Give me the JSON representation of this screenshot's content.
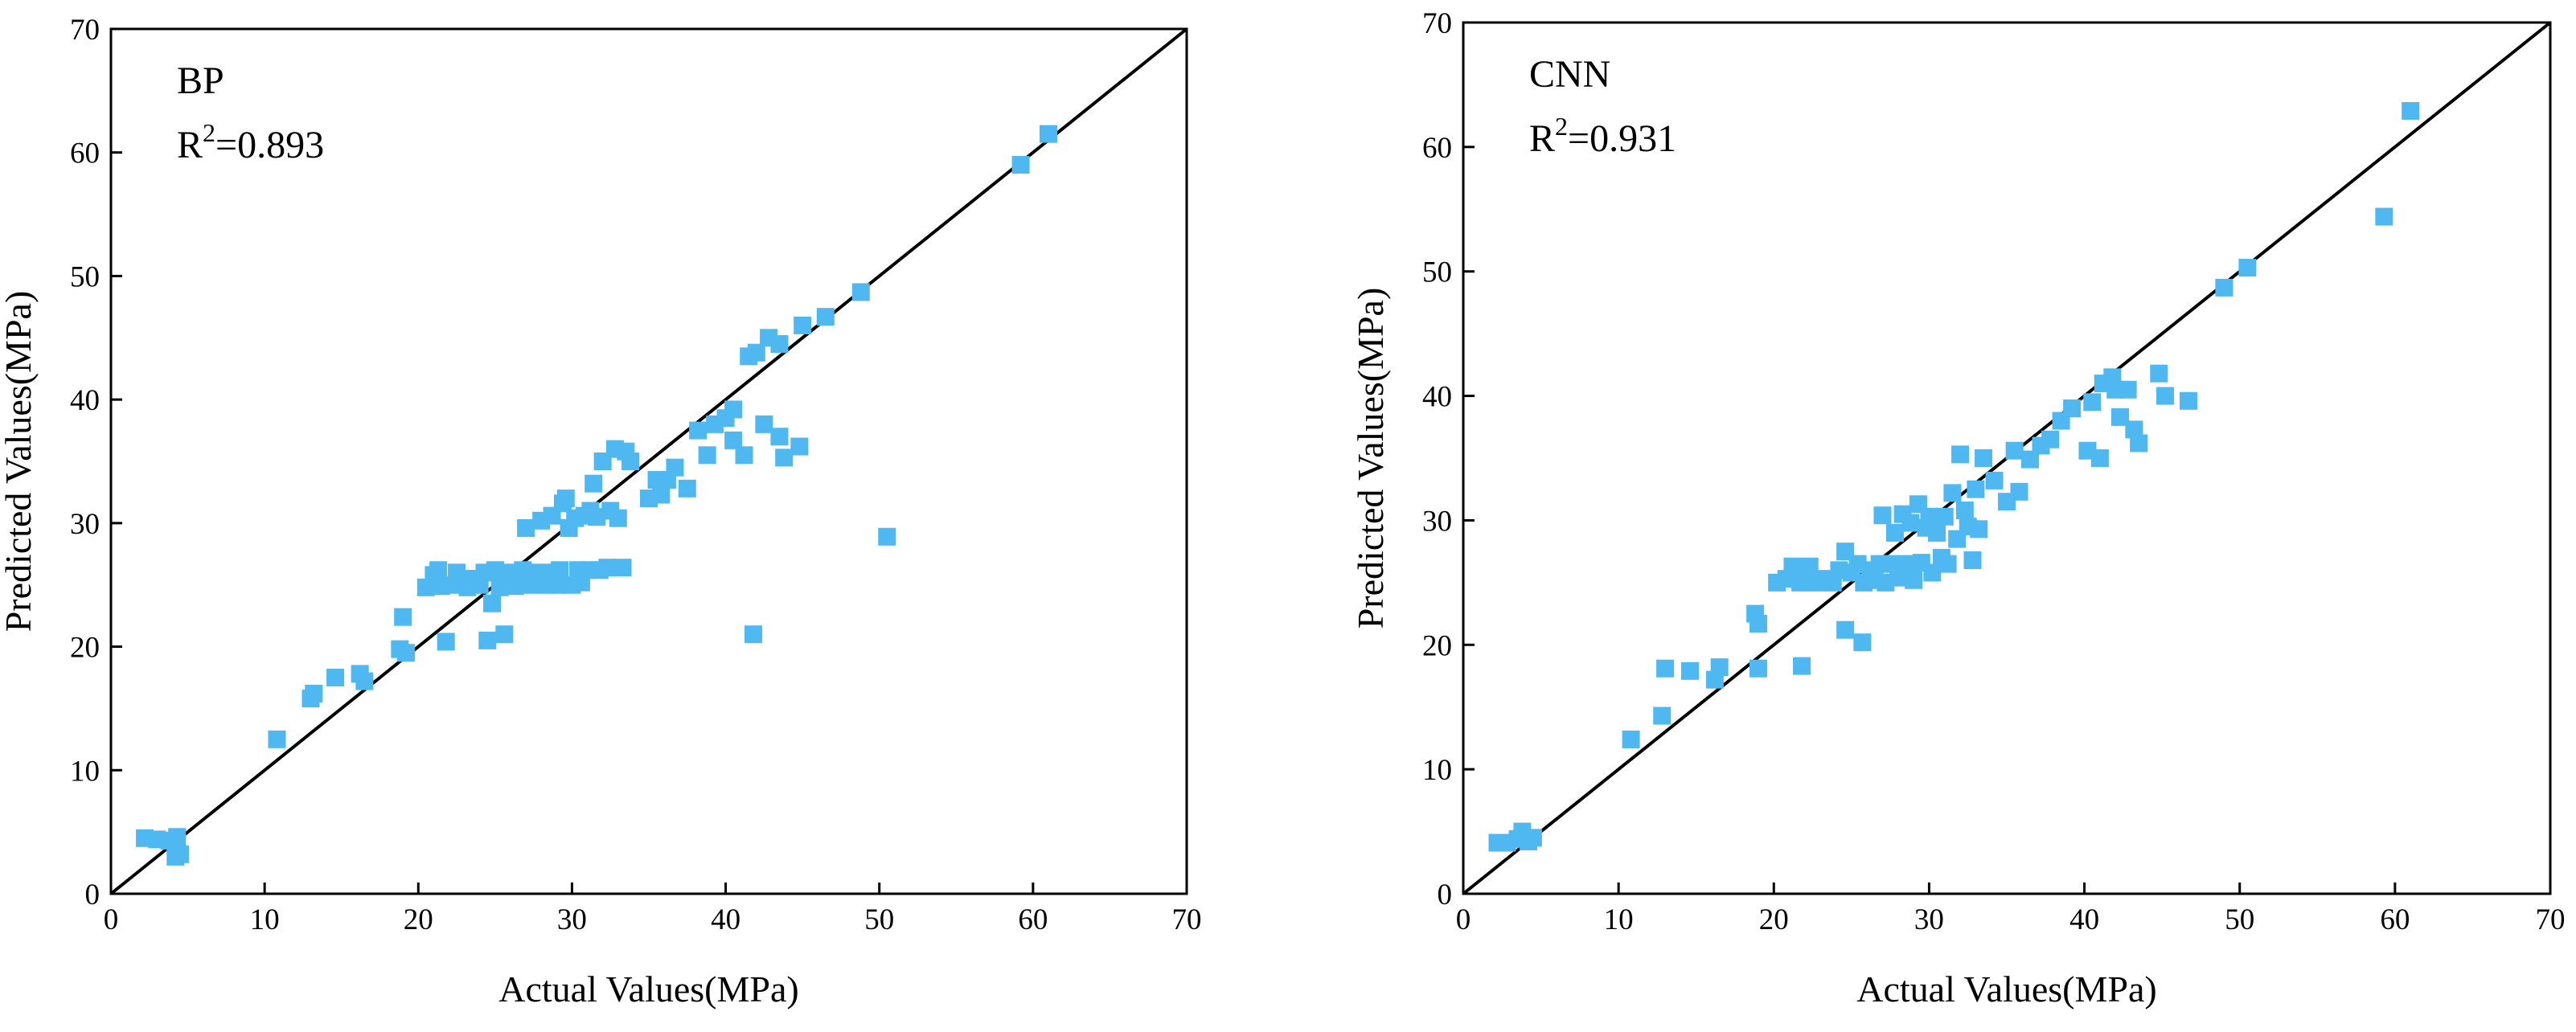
{
  "chart_data": [
    {
      "type": "scatter",
      "model_label": "BP",
      "r2_prefix": "R",
      "r2_sup": "2",
      "r2_value": "=0.893",
      "xlabel": "Actual Values(MPa)",
      "ylabel": "Predicted Values(MPa)",
      "xlim": [
        0,
        70
      ],
      "ylim": [
        0,
        70
      ],
      "xticks": [
        "0",
        "10",
        "20",
        "30",
        "40",
        "50",
        "60",
        "70"
      ],
      "yticks": [
        "0",
        "10",
        "20",
        "30",
        "40",
        "50",
        "60",
        "70"
      ],
      "reference_line": [
        [
          0,
          0
        ],
        [
          70,
          70
        ]
      ],
      "marker_color": "#4fb8f0",
      "points": [
        [
          2.2,
          4.5
        ],
        [
          3.0,
          4.4
        ],
        [
          3.8,
          4.3
        ],
        [
          4.2,
          3.0
        ],
        [
          4.5,
          3.2
        ],
        [
          4.3,
          4.6
        ],
        [
          10.8,
          12.5
        ],
        [
          13.0,
          15.8
        ],
        [
          13.2,
          16.2
        ],
        [
          14.6,
          17.5
        ],
        [
          16.2,
          17.8
        ],
        [
          16.5,
          17.2
        ],
        [
          18.8,
          19.8
        ],
        [
          19.0,
          22.4
        ],
        [
          19.2,
          19.5
        ],
        [
          20.5,
          24.8
        ],
        [
          21.0,
          25.8
        ],
        [
          21.3,
          26.2
        ],
        [
          21.5,
          24.9
        ],
        [
          21.8,
          20.4
        ],
        [
          22.2,
          25.0
        ],
        [
          22.5,
          26.0
        ],
        [
          23.0,
          25.2
        ],
        [
          23.2,
          24.8
        ],
        [
          23.5,
          25.5
        ],
        [
          24.0,
          25.0
        ],
        [
          24.3,
          26.0
        ],
        [
          24.5,
          20.5
        ],
        [
          24.8,
          23.5
        ],
        [
          25.0,
          26.2
        ],
        [
          25.3,
          24.8
        ],
        [
          25.6,
          21.0
        ],
        [
          25.8,
          25.2
        ],
        [
          26.0,
          26.0
        ],
        [
          26.3,
          24.9
        ],
        [
          26.5,
          25.6
        ],
        [
          26.8,
          26.2
        ],
        [
          27.0,
          29.6
        ],
        [
          27.2,
          25.0
        ],
        [
          27.5,
          26.0
        ],
        [
          27.8,
          25.2
        ],
        [
          28.0,
          30.2
        ],
        [
          28.3,
          25.0
        ],
        [
          28.5,
          26.0
        ],
        [
          28.7,
          30.6
        ],
        [
          29.0,
          25.0
        ],
        [
          29.2,
          26.2
        ],
        [
          29.4,
          31.6
        ],
        [
          29.6,
          32.0
        ],
        [
          29.8,
          29.6
        ],
        [
          30.0,
          25.0
        ],
        [
          30.2,
          30.4
        ],
        [
          30.4,
          26.2
        ],
        [
          30.6,
          25.2
        ],
        [
          30.8,
          30.6
        ],
        [
          31.0,
          26.2
        ],
        [
          31.2,
          31.0
        ],
        [
          31.4,
          33.2
        ],
        [
          31.6,
          30.5
        ],
        [
          31.8,
          26.2
        ],
        [
          32.0,
          35.0
        ],
        [
          32.3,
          26.4
        ],
        [
          32.5,
          31.0
        ],
        [
          32.8,
          36.0
        ],
        [
          33.0,
          30.4
        ],
        [
          33.3,
          26.4
        ],
        [
          33.5,
          35.8
        ],
        [
          33.8,
          35.0
        ],
        [
          35.0,
          32.0
        ],
        [
          35.5,
          33.5
        ],
        [
          35.8,
          32.3
        ],
        [
          36.2,
          33.5
        ],
        [
          36.7,
          34.5
        ],
        [
          37.5,
          32.8
        ],
        [
          38.2,
          37.5
        ],
        [
          38.8,
          35.5
        ],
        [
          39.3,
          38.0
        ],
        [
          40.0,
          38.5
        ],
        [
          40.5,
          36.7
        ],
        [
          40.5,
          39.2
        ],
        [
          41.2,
          35.5
        ],
        [
          41.5,
          43.5
        ],
        [
          41.8,
          21.0
        ],
        [
          42.0,
          43.8
        ],
        [
          42.5,
          38.0
        ],
        [
          42.8,
          45.0
        ],
        [
          43.5,
          44.5
        ],
        [
          43.5,
          37.0
        ],
        [
          43.8,
          35.3
        ],
        [
          44.8,
          36.2
        ],
        [
          45.0,
          46.0
        ],
        [
          46.5,
          46.7
        ],
        [
          48.8,
          48.7
        ],
        [
          50.5,
          28.9
        ],
        [
          59.2,
          59.0
        ],
        [
          61.0,
          61.5
        ]
      ]
    },
    {
      "type": "scatter",
      "model_label": "CNN",
      "r2_prefix": "R",
      "r2_sup": "2",
      "r2_value": "=0.931",
      "xlabel": "Actual Values(MPa)",
      "ylabel": "Predicted Values(MPa)",
      "xlim": [
        0,
        70
      ],
      "ylim": [
        0,
        70
      ],
      "xticks": [
        "0",
        "10",
        "20",
        "30",
        "40",
        "50",
        "60",
        "70"
      ],
      "yticks": [
        "0",
        "10",
        "20",
        "30",
        "40",
        "50",
        "60",
        "70"
      ],
      "reference_line": [
        [
          0,
          0
        ],
        [
          70,
          70
        ]
      ],
      "marker_color": "#4fb8f0",
      "points": [
        [
          2.2,
          4.1
        ],
        [
          2.8,
          4.1
        ],
        [
          3.5,
          4.4
        ],
        [
          3.8,
          5.0
        ],
        [
          4.2,
          4.2
        ],
        [
          4.5,
          4.5
        ],
        [
          10.8,
          12.4
        ],
        [
          12.8,
          14.3
        ],
        [
          13.0,
          18.1
        ],
        [
          14.6,
          17.9
        ],
        [
          16.2,
          17.2
        ],
        [
          16.5,
          18.2
        ],
        [
          18.8,
          22.5
        ],
        [
          19.0,
          21.7
        ],
        [
          19.0,
          18.1
        ],
        [
          20.2,
          25.0
        ],
        [
          20.8,
          25.3
        ],
        [
          21.2,
          26.3
        ],
        [
          21.7,
          25.0
        ],
        [
          21.8,
          18.3
        ],
        [
          22.3,
          26.3
        ],
        [
          22.8,
          25.0
        ],
        [
          23.3,
          25.3
        ],
        [
          23.8,
          25.0
        ],
        [
          24.2,
          26.0
        ],
        [
          24.6,
          27.5
        ],
        [
          24.6,
          21.2
        ],
        [
          25.0,
          25.8
        ],
        [
          25.4,
          26.5
        ],
        [
          25.7,
          20.2
        ],
        [
          25.8,
          25.0
        ],
        [
          26.2,
          26.0
        ],
        [
          26.5,
          25.2
        ],
        [
          26.8,
          26.5
        ],
        [
          27.0,
          30.4
        ],
        [
          27.2,
          25.0
        ],
        [
          27.5,
          26.5
        ],
        [
          27.8,
          29.0
        ],
        [
          28.0,
          25.4
        ],
        [
          28.3,
          30.5
        ],
        [
          28.5,
          26.5
        ],
        [
          28.8,
          29.8
        ],
        [
          29.0,
          25.2
        ],
        [
          29.3,
          31.3
        ],
        [
          29.5,
          26.6
        ],
        [
          29.8,
          29.4
        ],
        [
          30.0,
          30.3
        ],
        [
          30.2,
          25.8
        ],
        [
          30.5,
          29.0
        ],
        [
          30.8,
          27.0
        ],
        [
          31.0,
          30.3
        ],
        [
          31.2,
          26.5
        ],
        [
          31.5,
          32.2
        ],
        [
          31.8,
          28.5
        ],
        [
          32.0,
          35.3
        ],
        [
          32.3,
          30.8
        ],
        [
          32.5,
          29.5
        ],
        [
          32.8,
          26.8
        ],
        [
          33.0,
          32.5
        ],
        [
          33.2,
          29.3
        ],
        [
          33.5,
          35.0
        ],
        [
          34.2,
          33.2
        ],
        [
          35.0,
          31.5
        ],
        [
          35.5,
          35.6
        ],
        [
          35.8,
          32.3
        ],
        [
          36.5,
          34.9
        ],
        [
          37.2,
          36.0
        ],
        [
          37.8,
          36.5
        ],
        [
          38.5,
          38.0
        ],
        [
          39.2,
          39.0
        ],
        [
          40.2,
          35.6
        ],
        [
          40.5,
          39.5
        ],
        [
          41.0,
          35.0
        ],
        [
          41.2,
          41.0
        ],
        [
          41.8,
          41.5
        ],
        [
          42.0,
          40.5
        ],
        [
          42.3,
          38.3
        ],
        [
          42.8,
          40.5
        ],
        [
          43.2,
          37.3
        ],
        [
          43.5,
          36.2
        ],
        [
          44.8,
          41.8
        ],
        [
          45.2,
          40.0
        ],
        [
          46.7,
          39.6
        ],
        [
          49.0,
          48.7
        ],
        [
          50.5,
          50.3
        ],
        [
          59.3,
          54.4
        ],
        [
          61.0,
          62.9
        ]
      ]
    }
  ]
}
